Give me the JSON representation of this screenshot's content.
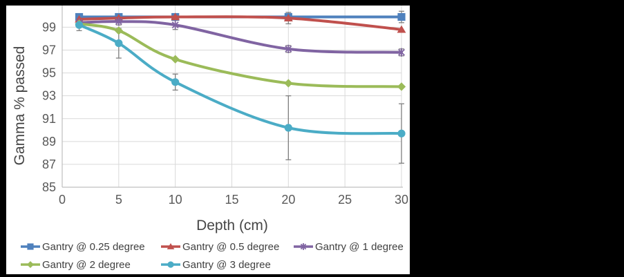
{
  "window": {
    "background": "#000000",
    "chart_background": "#ffffff"
  },
  "chart_data": {
    "type": "line",
    "title": "",
    "xlabel": "Depth (cm)",
    "ylabel": "Gamma % passed",
    "x": [
      1.5,
      5,
      10,
      20,
      30
    ],
    "x_ticks": [
      0,
      5,
      10,
      15,
      20,
      25,
      30
    ],
    "y_ticks": [
      85,
      87,
      89,
      91,
      93,
      95,
      97,
      99
    ],
    "xlim": [
      0,
      30
    ],
    "ylim": [
      85,
      100.9
    ],
    "grid": true,
    "smooth_lines": true,
    "legend_position": "bottom",
    "gridline_color": "#d9d9d9",
    "axis_line_color": "#bfbfbf",
    "tick_label_color": "#595959",
    "error_bar_color": "#7f7f7f",
    "series": [
      {
        "name": "Gantry @ 0.25 degree",
        "color": "#4F81BD",
        "marker": "square",
        "values": [
          99.9,
          99.9,
          99.9,
          99.9,
          99.9
        ],
        "error": [
          0,
          0,
          0,
          0,
          0.5
        ]
      },
      {
        "name": "Gantry @ 0.5 degree",
        "color": "#C0504D",
        "marker": "triangle",
        "values": [
          99.7,
          99.8,
          99.9,
          99.8,
          98.8
        ],
        "error": [
          0,
          0,
          0,
          0.5,
          0
        ]
      },
      {
        "name": "Gantry @ 1 degree",
        "color": "#8064A2",
        "marker": "asterisk",
        "values": [
          99.4,
          99.5,
          99.2,
          97.1,
          96.8
        ],
        "error": [
          0.3,
          0.3,
          0.4,
          0.3,
          0.3
        ]
      },
      {
        "name": "Gantry @ 2 degree",
        "color": "#9BBB59",
        "marker": "diamond",
        "values": [
          99.3,
          98.7,
          96.2,
          94.1,
          93.8
        ],
        "error": [
          0,
          0,
          0,
          0,
          0
        ]
      },
      {
        "name": "Gantry @ 3 degree",
        "color": "#4BACC6",
        "marker": "circle",
        "values": [
          99.2,
          97.6,
          94.2,
          90.2,
          89.7
        ],
        "error": [
          0.5,
          1.3,
          0.7,
          2.8,
          2.6
        ]
      }
    ]
  }
}
